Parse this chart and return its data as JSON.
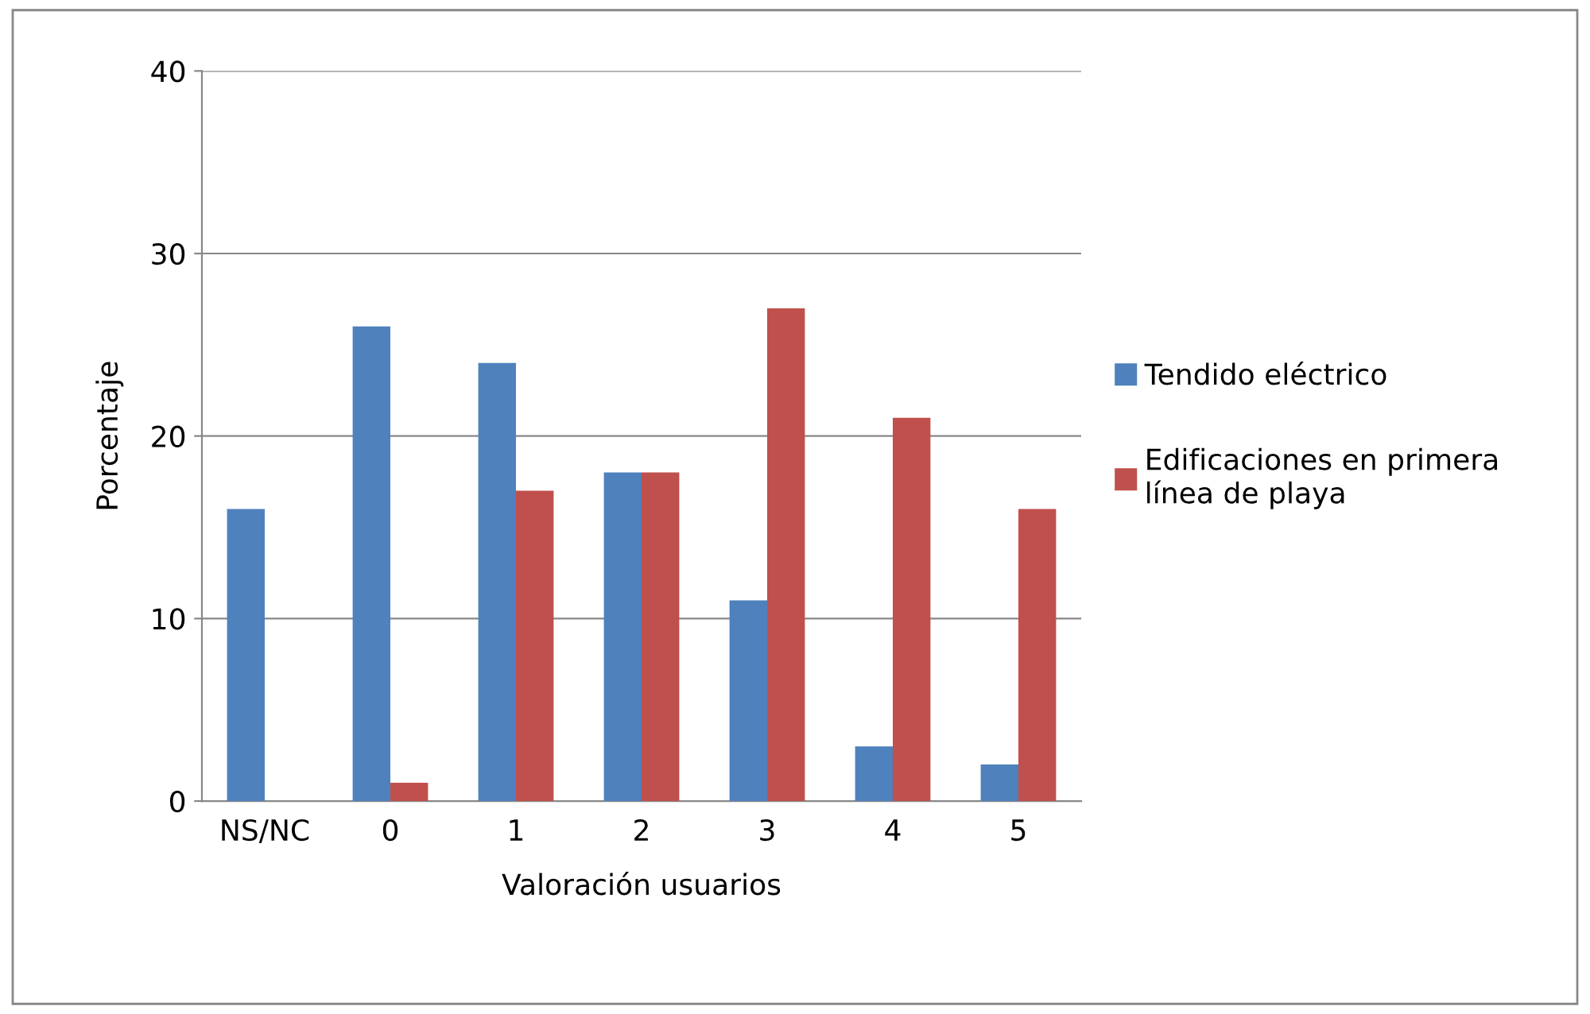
{
  "chart_data": {
    "type": "bar",
    "xlabel": "Valoración usuarios",
    "ylabel": "Porcentaje",
    "categories": [
      "NS/NC",
      "0",
      "1",
      "2",
      "3",
      "4",
      "5"
    ],
    "series": [
      {
        "name": "Tendido eléctrico",
        "color": "#4f81bd",
        "values": [
          16,
          26,
          24,
          18,
          11,
          3,
          2
        ]
      },
      {
        "name": "Edificaciones en primera línea de playa",
        "color": "#c0504d",
        "values": [
          null,
          1,
          17,
          18,
          27,
          21,
          16
        ]
      }
    ],
    "ylim": [
      0,
      40
    ],
    "yticks": [
      0,
      10,
      20,
      30,
      40
    ],
    "grid": "y",
    "legend": "right"
  }
}
